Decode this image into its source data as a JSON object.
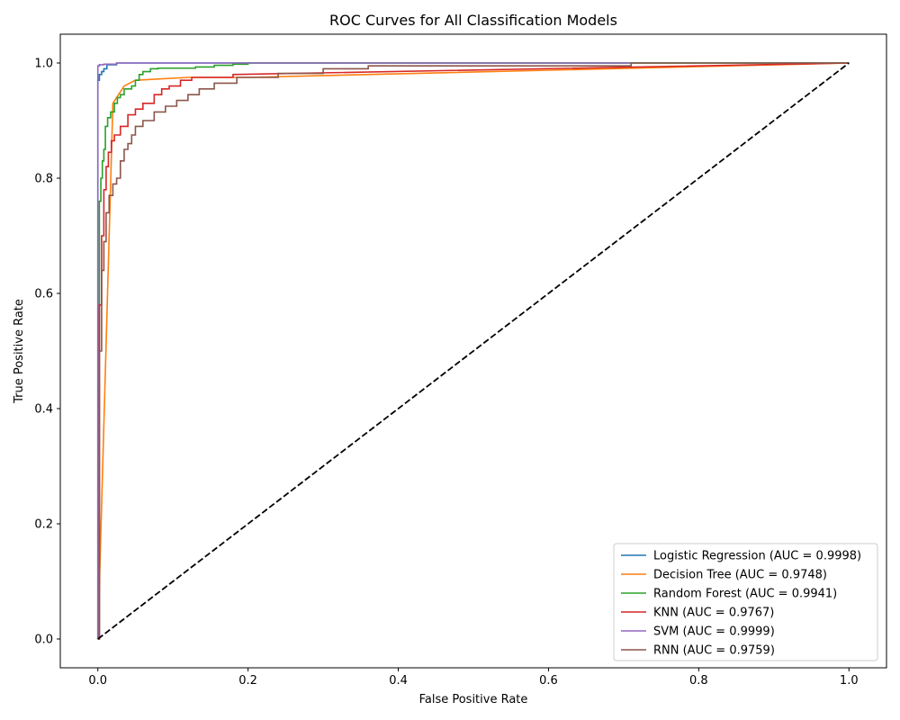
{
  "chart_data": {
    "type": "line",
    "title": "ROC Curves for All Classification Models",
    "xlabel": "False Positive Rate",
    "ylabel": "True Positive Rate",
    "xlim": [
      -0.05,
      1.05
    ],
    "ylim": [
      -0.05,
      1.05
    ],
    "xticks": [
      0.0,
      0.2,
      0.4,
      0.6,
      0.8,
      1.0
    ],
    "yticks": [
      0.0,
      0.2,
      0.4,
      0.6,
      0.8,
      1.0
    ],
    "xtick_labels": [
      "0.0",
      "0.2",
      "0.4",
      "0.6",
      "0.8",
      "1.0"
    ],
    "ytick_labels": [
      "0.0",
      "0.2",
      "0.4",
      "0.6",
      "0.8",
      "1.0"
    ],
    "grid": false,
    "legend_position": "bottom-right",
    "series": [
      {
        "name": "Logistic Regression (AUC = 0.9998)",
        "color": "#1f77b4",
        "x": [
          0.0,
          0.0,
          0.002,
          0.002,
          0.005,
          0.005,
          0.008,
          0.008,
          0.012,
          0.012,
          0.025,
          0.025,
          1.0
        ],
        "y": [
          0.0,
          0.97,
          0.97,
          0.98,
          0.98,
          0.985,
          0.985,
          0.99,
          0.99,
          0.997,
          0.997,
          1.0,
          1.0
        ]
      },
      {
        "name": "Decision Tree (AUC = 0.9748)",
        "color": "#ff7f0e",
        "x": [
          0.0,
          0.02,
          0.035,
          0.05,
          0.12,
          0.2,
          1.0
        ],
        "y": [
          0.0,
          0.93,
          0.96,
          0.97,
          0.975,
          0.975,
          1.0
        ]
      },
      {
        "name": "Random Forest (AUC = 0.9941)",
        "color": "#2ca02c",
        "x": [
          0.0,
          0.002,
          0.002,
          0.004,
          0.004,
          0.006,
          0.006,
          0.008,
          0.008,
          0.01,
          0.01,
          0.013,
          0.013,
          0.017,
          0.017,
          0.022,
          0.022,
          0.026,
          0.026,
          0.03,
          0.03,
          0.035,
          0.035,
          0.045,
          0.045,
          0.05,
          0.05,
          0.055,
          0.055,
          0.06,
          0.06,
          0.07,
          0.07,
          0.08,
          0.08,
          0.13,
          0.13,
          0.155,
          0.155,
          0.18,
          0.18,
          0.2,
          0.2,
          1.0
        ],
        "y": [
          0.0,
          0.0,
          0.76,
          0.76,
          0.8,
          0.8,
          0.83,
          0.83,
          0.85,
          0.85,
          0.89,
          0.89,
          0.905,
          0.905,
          0.915,
          0.915,
          0.93,
          0.93,
          0.94,
          0.94,
          0.945,
          0.945,
          0.955,
          0.955,
          0.96,
          0.96,
          0.97,
          0.97,
          0.98,
          0.98,
          0.985,
          0.985,
          0.99,
          0.99,
          0.991,
          0.991,
          0.993,
          0.993,
          0.996,
          0.996,
          0.998,
          0.998,
          1.0,
          1.0
        ]
      },
      {
        "name": "KNN (AUC = 0.9767)",
        "color": "#d62728",
        "x": [
          0.0,
          0.002,
          0.002,
          0.005,
          0.005,
          0.008,
          0.008,
          0.011,
          0.011,
          0.014,
          0.014,
          0.018,
          0.018,
          0.022,
          0.022,
          0.03,
          0.03,
          0.04,
          0.04,
          0.05,
          0.05,
          0.06,
          0.06,
          0.075,
          0.075,
          0.085,
          0.085,
          0.095,
          0.095,
          0.11,
          0.11,
          0.125,
          0.125,
          0.18,
          0.18,
          1.0
        ],
        "y": [
          0.0,
          0.0,
          0.58,
          0.58,
          0.7,
          0.7,
          0.78,
          0.78,
          0.82,
          0.82,
          0.845,
          0.845,
          0.865,
          0.865,
          0.875,
          0.875,
          0.89,
          0.89,
          0.91,
          0.91,
          0.92,
          0.92,
          0.93,
          0.93,
          0.945,
          0.945,
          0.955,
          0.955,
          0.96,
          0.96,
          0.97,
          0.97,
          0.975,
          0.975,
          0.98,
          1.0
        ]
      },
      {
        "name": "SVM (AUC = 0.9999)",
        "color": "#9467bd",
        "x": [
          0.0,
          0.0,
          0.002,
          0.002,
          0.008,
          0.008,
          0.025,
          0.025,
          0.71
        ],
        "y": [
          0.0,
          0.995,
          0.995,
          0.997,
          0.997,
          0.998,
          0.998,
          1.0,
          1.0
        ]
      },
      {
        "name": "RNN (AUC = 0.9759)",
        "color": "#8c564b",
        "x": [
          0.0,
          0.002,
          0.002,
          0.005,
          0.005,
          0.008,
          0.008,
          0.011,
          0.011,
          0.015,
          0.015,
          0.02,
          0.02,
          0.025,
          0.025,
          0.03,
          0.03,
          0.035,
          0.035,
          0.04,
          0.04,
          0.045,
          0.045,
          0.05,
          0.05,
          0.06,
          0.06,
          0.075,
          0.075,
          0.09,
          0.09,
          0.105,
          0.105,
          0.12,
          0.12,
          0.135,
          0.135,
          0.155,
          0.155,
          0.185,
          0.185,
          0.24,
          0.24,
          0.3,
          0.3,
          0.36,
          0.36,
          0.71,
          0.71,
          1.0
        ],
        "y": [
          0.0,
          0.0,
          0.5,
          0.5,
          0.64,
          0.64,
          0.69,
          0.69,
          0.74,
          0.74,
          0.77,
          0.77,
          0.79,
          0.79,
          0.8,
          0.8,
          0.83,
          0.83,
          0.85,
          0.85,
          0.86,
          0.86,
          0.875,
          0.875,
          0.89,
          0.89,
          0.9,
          0.9,
          0.915,
          0.915,
          0.925,
          0.925,
          0.935,
          0.935,
          0.945,
          0.945,
          0.955,
          0.955,
          0.965,
          0.965,
          0.975,
          0.975,
          0.982,
          0.982,
          0.99,
          0.99,
          0.995,
          0.995,
          1.0,
          1.0
        ]
      }
    ],
    "reference_line": {
      "color": "#000000",
      "x": [
        0.0,
        1.0
      ],
      "y": [
        0.0,
        1.0
      ]
    }
  }
}
